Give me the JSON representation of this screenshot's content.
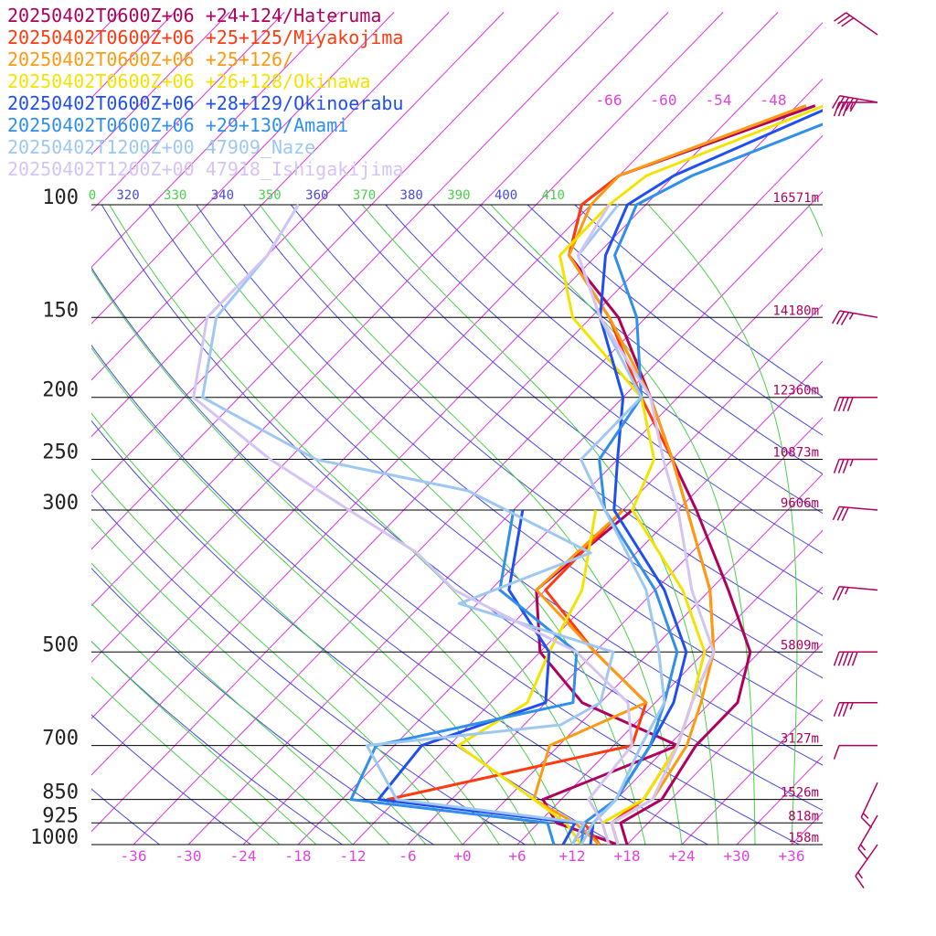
{
  "chart_data": {
    "type": "line",
    "title": "",
    "xlabel": "",
    "ylabel": "",
    "legend": [
      {
        "label": "20250402T0600Z+06 +24+124/Hateruma",
        "color": "#b0005e"
      },
      {
        "label": "20250402T0600Z+06 +25+125/Miyakojima",
        "color": "#ff3a10"
      },
      {
        "label": "20250402T0600Z+06 +25+126/",
        "color": "#ff9a10"
      },
      {
        "label": "20250402T0600Z+06 +26+128/Okinawa",
        "color": "#f2e400"
      },
      {
        "label": "20250402T0600Z+06 +28+129/Okinoerabu",
        "color": "#1f4ff0"
      },
      {
        "label": "20250402T0600Z+06 +29+130/Amami",
        "color": "#2f8fea"
      },
      {
        "label": "20250402T1200Z+00 47909_Naze",
        "color": "#9ec8f2"
      },
      {
        "label": "20250402T1200Z+00 47918_Ishigakijima",
        "color": "#d4c4f4"
      }
    ],
    "legend_placement": "top-left",
    "pressure_levels": [
      {
        "p": 100,
        "label": "100",
        "height": "16571m"
      },
      {
        "p": 150,
        "label": "150",
        "height": "14180m"
      },
      {
        "p": 200,
        "label": "200",
        "height": "12360m"
      },
      {
        "p": 250,
        "label": "250",
        "height": "10873m"
      },
      {
        "p": 300,
        "label": "300",
        "height": "9606m"
      },
      {
        "p": 500,
        "label": "500",
        "height": "5809m"
      },
      {
        "p": 700,
        "label": "700",
        "height": "3127m"
      },
      {
        "p": 850,
        "label": "850",
        "height": "1526m"
      },
      {
        "p": 925,
        "label": "925",
        "height": "818m"
      },
      {
        "p": 1000,
        "label": "1000",
        "height": "158m"
      }
    ],
    "temperature_ticks": [
      {
        "t": -36,
        "label": "-36"
      },
      {
        "t": -30,
        "label": "-30"
      },
      {
        "t": -24,
        "label": "-24"
      },
      {
        "t": -18,
        "label": "-18"
      },
      {
        "t": -12,
        "label": "-12"
      },
      {
        "t": -6,
        "label": "-6"
      },
      {
        "t": 0,
        "label": "+0"
      },
      {
        "t": 6,
        "label": "+6"
      },
      {
        "t": 12,
        "label": "+12"
      },
      {
        "t": 18,
        "label": "+18"
      },
      {
        "t": 24,
        "label": "+24"
      },
      {
        "t": 30,
        "label": "+30"
      },
      {
        "t": 36,
        "label": "+36"
      }
    ],
    "upper_isotherm_labels": [
      {
        "t": -66,
        "label": "-66"
      },
      {
        "t": -60,
        "label": "-60"
      },
      {
        "t": -54,
        "label": "-54"
      },
      {
        "t": -48,
        "label": "-48"
      }
    ],
    "theta_labels": [
      {
        "label": "0",
        "color": "#4ad04a"
      },
      {
        "label": "320",
        "color": "#4848e0"
      },
      {
        "label": "330",
        "color": "#4ad04a"
      },
      {
        "label": "340",
        "color": "#4848e0"
      },
      {
        "label": "350",
        "color": "#4ad04a"
      },
      {
        "label": "360",
        "color": "#4848e0"
      },
      {
        "label": "370",
        "color": "#4ad04a"
      },
      {
        "label": "380",
        "color": "#4848e0"
      },
      {
        "label": "390",
        "color": "#4ad04a"
      },
      {
        "label": "400",
        "color": "#4848e0"
      },
      {
        "label": "410",
        "color": "#4ad04a"
      }
    ],
    "xlim": [
      -39,
      40
    ],
    "ylim_hpa": [
      1000,
      100
    ],
    "y_scale": "log",
    "grid": true,
    "series": [
      {
        "name": "20250402T0600Z+06 +24+124/Hateruma",
        "color": "#b0005e",
        "temperature": [
          [
            1000,
            18
          ],
          [
            925,
            15
          ],
          [
            850,
            17
          ],
          [
            700,
            15
          ],
          [
            600,
            15
          ],
          [
            500,
            11
          ],
          [
            400,
            2
          ],
          [
            300,
            -10
          ],
          [
            250,
            -18
          ],
          [
            200,
            -27
          ],
          [
            150,
            -39
          ],
          [
            120,
            -51
          ],
          [
            100,
            -55
          ],
          [
            90,
            -54
          ],
          [
            70,
            -40
          ]
        ],
        "dewpoint": [
          [
            1000,
            17
          ],
          [
            925,
            8
          ],
          [
            850,
            4
          ],
          [
            700,
            13
          ],
          [
            600,
            -2
          ],
          [
            500,
            -12
          ],
          [
            400,
            -19
          ],
          [
            300,
            -17
          ]
        ]
      },
      {
        "name": "20250402T0600Z+06 +25+125/Miyakojima",
        "color": "#ff3a10",
        "temperature": [
          [
            1000,
            17
          ],
          [
            925,
            14
          ],
          [
            850,
            15
          ],
          [
            700,
            13
          ],
          [
            600,
            10
          ],
          [
            500,
            7
          ],
          [
            400,
            0
          ],
          [
            300,
            -11
          ],
          [
            250,
            -18
          ],
          [
            200,
            -28
          ],
          [
            150,
            -40
          ],
          [
            120,
            -51
          ],
          [
            100,
            -55
          ],
          [
            90,
            -54
          ],
          [
            70,
            -41
          ]
        ],
        "dewpoint": [
          [
            1000,
            15
          ],
          [
            925,
            11
          ],
          [
            850,
            -13
          ],
          [
            700,
            8
          ],
          [
            600,
            5
          ],
          [
            500,
            -6
          ],
          [
            400,
            -18
          ],
          [
            300,
            -18
          ]
        ]
      },
      {
        "name": "20250402T0600Z+06 +25+126/",
        "color": "#ff9a10",
        "temperature": [
          [
            1000,
            17
          ],
          [
            925,
            14
          ],
          [
            850,
            16
          ],
          [
            700,
            14
          ],
          [
            600,
            11
          ],
          [
            500,
            7
          ],
          [
            400,
            0
          ],
          [
            300,
            -11
          ],
          [
            250,
            -18
          ],
          [
            200,
            -27
          ],
          [
            150,
            -40
          ],
          [
            120,
            -51
          ],
          [
            100,
            -54
          ],
          [
            90,
            -54
          ],
          [
            70,
            -41
          ]
        ],
        "dewpoint": [
          [
            1000,
            15
          ],
          [
            925,
            10
          ],
          [
            850,
            3
          ],
          [
            700,
            -1
          ],
          [
            600,
            5
          ],
          [
            500,
            -6
          ],
          [
            400,
            -19
          ],
          [
            300,
            -18
          ]
        ]
      },
      {
        "name": "20250402T0600Z+06 +26+128/Okinawa",
        "color": "#f2e400",
        "temperature": [
          [
            1000,
            16
          ],
          [
            925,
            13
          ],
          [
            850,
            15
          ],
          [
            700,
            13
          ],
          [
            600,
            10
          ],
          [
            500,
            6
          ],
          [
            400,
            -3
          ],
          [
            300,
            -17
          ],
          [
            250,
            -20
          ],
          [
            200,
            -28
          ],
          [
            150,
            -44
          ],
          [
            120,
            -52
          ],
          [
            100,
            -52
          ],
          [
            90,
            -51
          ],
          [
            70,
            -39
          ]
        ],
        "dewpoint": [
          [
            1000,
            13
          ],
          [
            925,
            9
          ],
          [
            850,
            3
          ],
          [
            700,
            -11
          ],
          [
            600,
            -8
          ],
          [
            500,
            -11
          ],
          [
            400,
            -14
          ],
          [
            300,
            -21
          ]
        ]
      },
      {
        "name": "20250402T0600Z+06 +28+129/Okinoerabu",
        "color": "#1f4ff0",
        "temperature": [
          [
            1000,
            14
          ],
          [
            925,
            12
          ],
          [
            850,
            12
          ],
          [
            700,
            10
          ],
          [
            600,
            8
          ],
          [
            500,
            4
          ],
          [
            400,
            -5
          ],
          [
            300,
            -19
          ],
          [
            250,
            -24
          ],
          [
            200,
            -30
          ],
          [
            150,
            -41
          ],
          [
            120,
            -47
          ],
          [
            100,
            -50
          ],
          [
            90,
            -48
          ],
          [
            70,
            -38
          ]
        ],
        "dewpoint": [
          [
            1000,
            11
          ],
          [
            925,
            10
          ],
          [
            850,
            -14
          ],
          [
            700,
            -15
          ],
          [
            600,
            -6
          ],
          [
            500,
            -11
          ],
          [
            400,
            -22
          ],
          [
            300,
            -29
          ]
        ]
      },
      {
        "name": "20250402T0600Z+06 +29+130/Amami",
        "color": "#2f8fea",
        "temperature": [
          [
            1000,
            13
          ],
          [
            925,
            11
          ],
          [
            850,
            12
          ],
          [
            700,
            10
          ],
          [
            600,
            7
          ],
          [
            500,
            3
          ],
          [
            400,
            -6
          ],
          [
            300,
            -20
          ],
          [
            250,
            -26
          ],
          [
            200,
            -28
          ],
          [
            150,
            -37
          ],
          [
            120,
            -46
          ],
          [
            100,
            -49
          ],
          [
            90,
            -46
          ],
          [
            70,
            -34
          ]
        ],
        "dewpoint": [
          [
            1000,
            10
          ],
          [
            925,
            7
          ],
          [
            850,
            -17
          ],
          [
            700,
            -20
          ],
          [
            600,
            -3
          ],
          [
            500,
            -8
          ],
          [
            400,
            -23
          ],
          [
            300,
            -30
          ]
        ]
      },
      {
        "name": "20250402T1200Z+00 47909_Naze",
        "color": "#9ec8f2",
        "temperature": [
          [
            1000,
            13
          ],
          [
            925,
            12
          ],
          [
            850,
            12
          ],
          [
            700,
            9
          ],
          [
            600,
            7
          ],
          [
            500,
            1
          ],
          [
            400,
            -7
          ],
          [
            300,
            -20
          ],
          [
            250,
            -28
          ],
          [
            200,
            -28
          ],
          [
            150,
            -41
          ],
          [
            120,
            -50
          ],
          [
            100,
            -51
          ]
        ],
        "dewpoint": [
          [
            1000,
            12
          ],
          [
            925,
            11
          ],
          [
            850,
            -12
          ],
          [
            700,
            -21
          ],
          [
            650,
            -2
          ],
          [
            600,
            0
          ],
          [
            500,
            -4
          ],
          [
            420,
            -26
          ],
          [
            350,
            -17
          ],
          [
            280,
            -37
          ],
          [
            250,
            -57
          ],
          [
            200,
            -76
          ],
          [
            150,
            -83
          ],
          [
            120,
            -84
          ],
          [
            100,
            -86
          ]
        ]
      },
      {
        "name": "20250402T1200Z+00 47918_Ishigakijima",
        "color": "#d4c4f4",
        "temperature": [
          [
            1000,
            17
          ],
          [
            925,
            14
          ],
          [
            850,
            16
          ],
          [
            700,
            13
          ],
          [
            600,
            10
          ],
          [
            500,
            7
          ],
          [
            400,
            -2
          ],
          [
            300,
            -12
          ],
          [
            250,
            -19
          ],
          [
            200,
            -27
          ],
          [
            150,
            -41
          ],
          [
            120,
            -50
          ],
          [
            100,
            -52
          ]
        ],
        "dewpoint": [
          [
            1000,
            16
          ],
          [
            925,
            13
          ],
          [
            850,
            9
          ],
          [
            700,
            8
          ],
          [
            600,
            3
          ],
          [
            500,
            -8
          ],
          [
            400,
            -28
          ],
          [
            350,
            -36
          ],
          [
            300,
            -48
          ],
          [
            250,
            -62
          ],
          [
            200,
            -77
          ],
          [
            150,
            -84
          ],
          [
            120,
            -84
          ],
          [
            100,
            -86
          ]
        ]
      }
    ],
    "wind_barbs": [
      {
        "p": 60,
        "speed_kt": 30,
        "dir_deg": 305
      },
      {
        "p": 80,
        "speed_kt": 35,
        "dir_deg": 270
      },
      {
        "p": 100,
        "speed_kt": 50,
        "dir_deg": 280
      },
      {
        "p": 150,
        "speed_kt": 35,
        "dir_deg": 280
      },
      {
        "p": 200,
        "speed_kt": 40,
        "dir_deg": 270
      },
      {
        "p": 250,
        "speed_kt": 35,
        "dir_deg": 270
      },
      {
        "p": 300,
        "speed_kt": 30,
        "dir_deg": 275
      },
      {
        "p": 400,
        "speed_kt": 25,
        "dir_deg": 275
      },
      {
        "p": 500,
        "speed_kt": 50,
        "dir_deg": 270
      },
      {
        "p": 600,
        "speed_kt": 35,
        "dir_deg": 270
      },
      {
        "p": 700,
        "speed_kt": 10,
        "dir_deg": 270
      },
      {
        "p": 800,
        "speed_kt": 15,
        "dir_deg": 205
      },
      {
        "p": 900,
        "speed_kt": 15,
        "dir_deg": 210
      },
      {
        "p": 1000,
        "speed_kt": 15,
        "dir_deg": 215
      }
    ]
  },
  "colors": {
    "isotherm": "#dd33dd",
    "isobar": "#000000",
    "dry_adiabat": "#4848e0",
    "moist_adiabat": "#4ad04a",
    "tick_text": "#dd44dd",
    "pressure_text": "#222222",
    "height_text": "#b0005e",
    "barb": "#b0005e"
  }
}
